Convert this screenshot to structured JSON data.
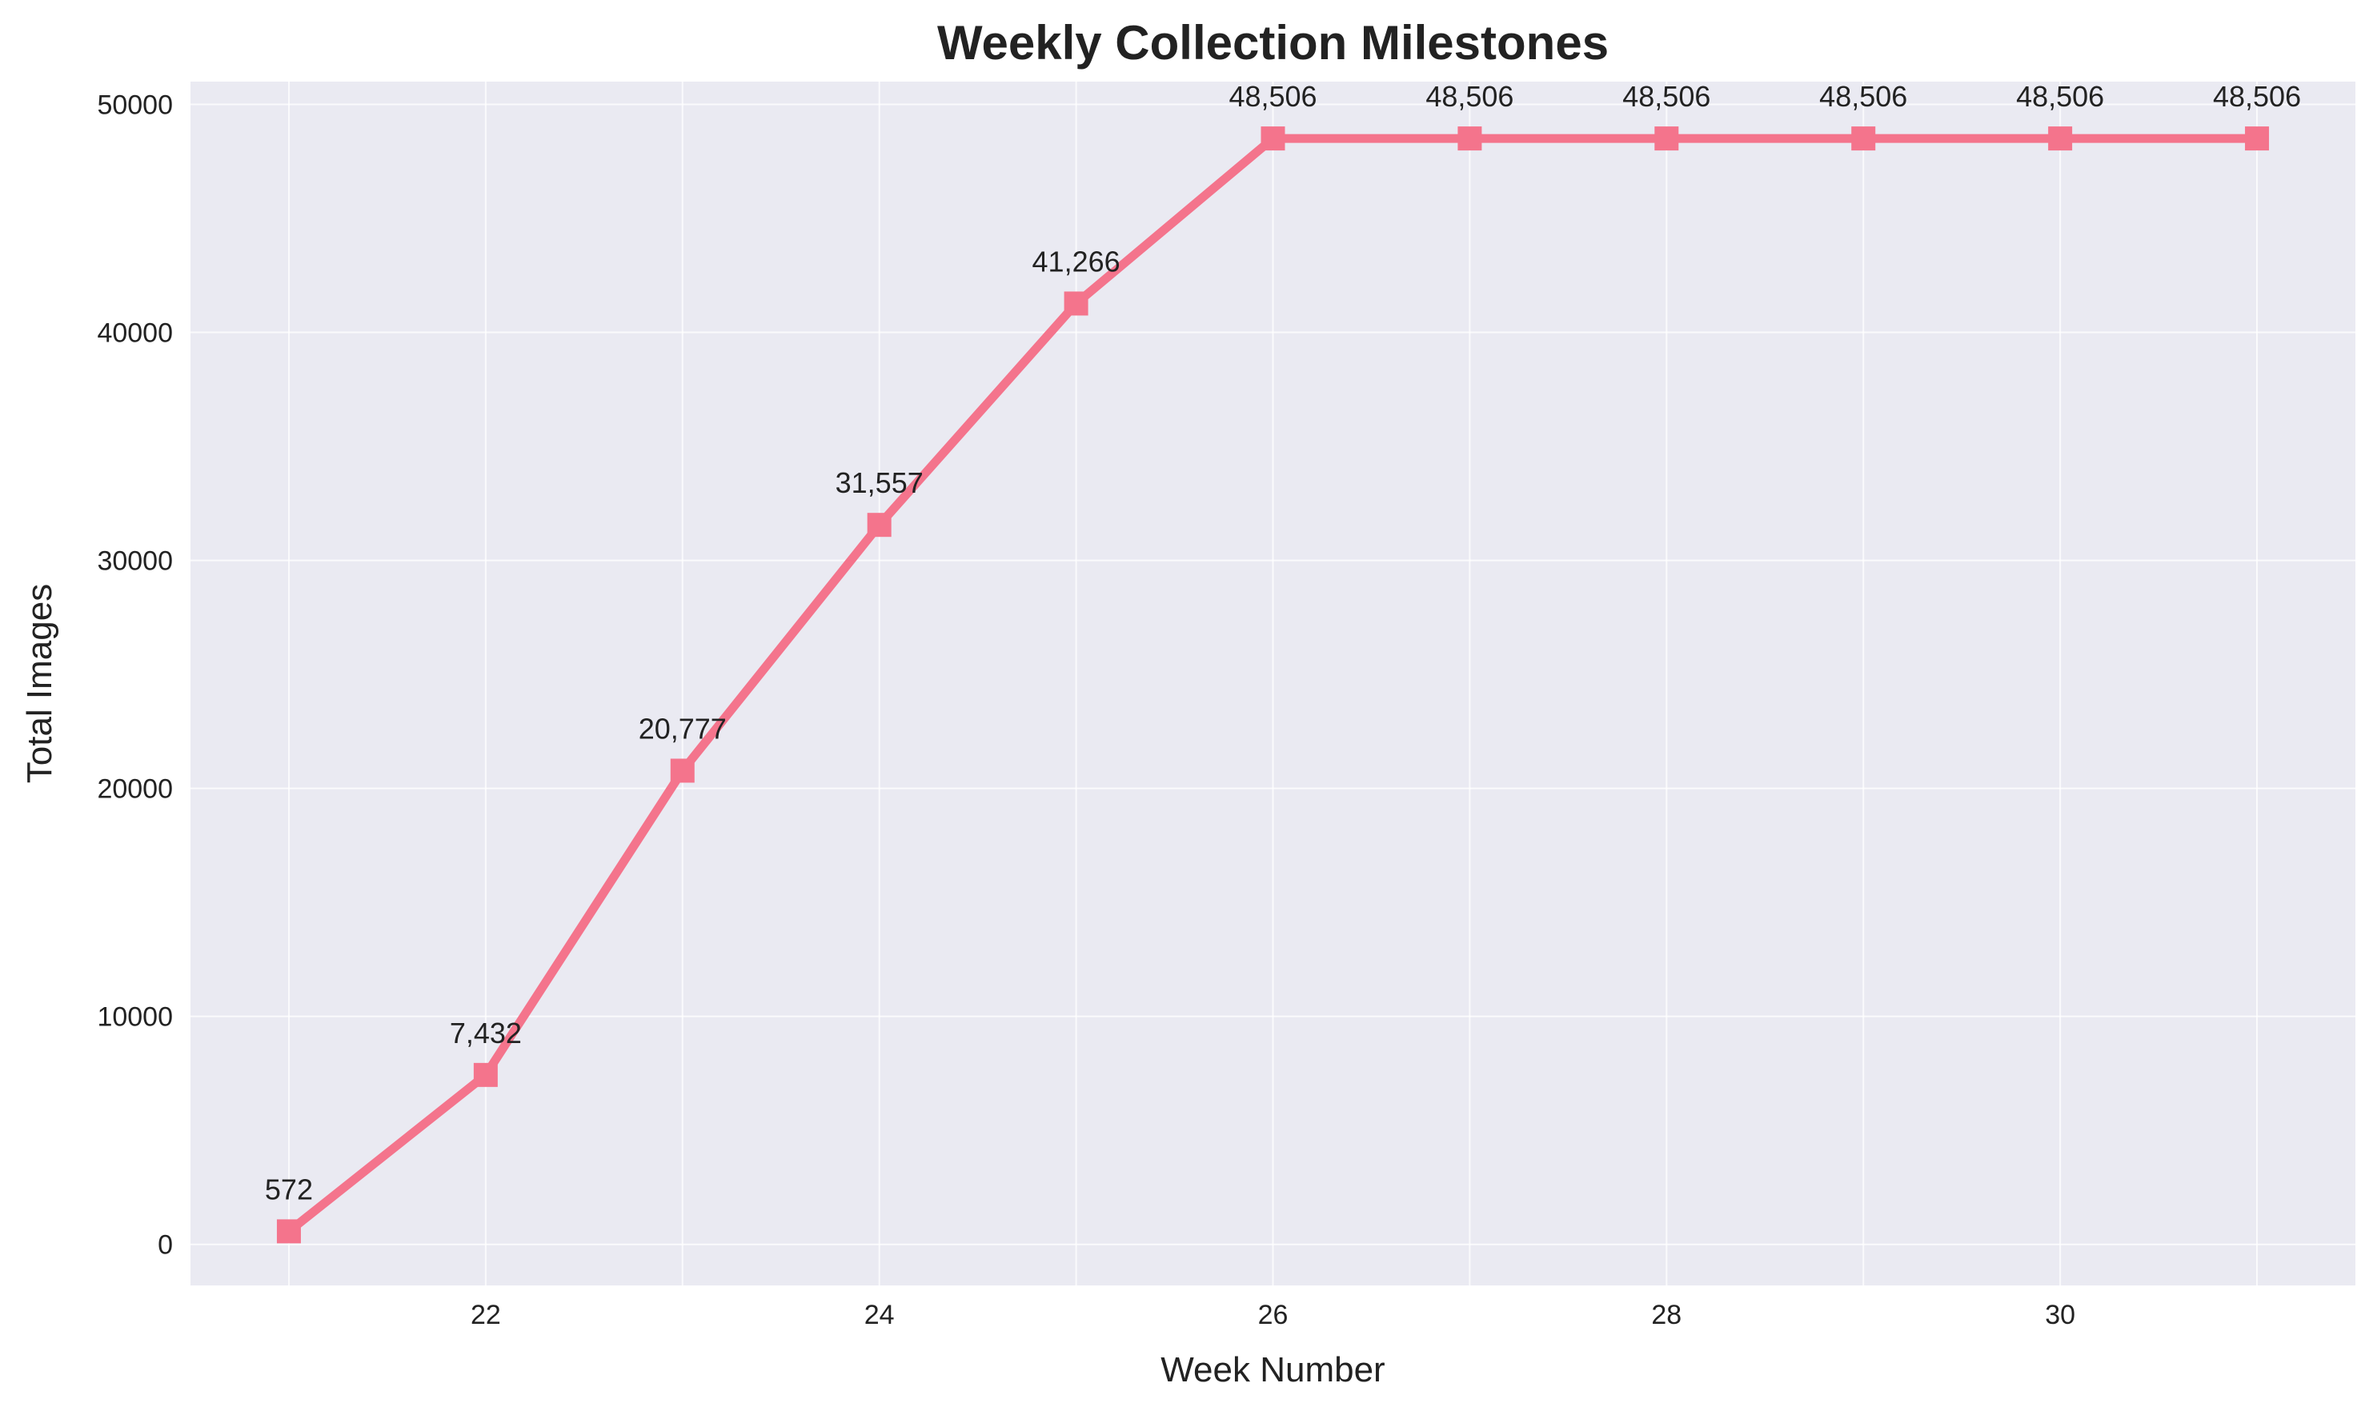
{
  "chart_data": {
    "type": "line",
    "title": "Weekly Collection Milestones",
    "xlabel": "Week Number",
    "ylabel": "Total Images",
    "x": [
      21,
      22,
      23,
      24,
      25,
      26,
      27,
      28,
      29,
      30,
      31
    ],
    "series": [
      {
        "values": [
          572,
          7432,
          20777,
          31557,
          41266,
          48506,
          48506,
          48506,
          48506,
          48506,
          48506
        ],
        "labels": [
          "572",
          "7,432",
          "20,777",
          "31,557",
          "41,266",
          "48,506",
          "48,506",
          "48,506",
          "48,506",
          "48,506",
          "48,506"
        ],
        "color": "#f4748c",
        "marker": "square"
      }
    ],
    "xlim": [
      20.5,
      31.5
    ],
    "ylim": [
      -1800,
      51000
    ],
    "xticks": [
      22,
      24,
      26,
      28,
      30
    ],
    "yticks": [
      0,
      10000,
      20000,
      30000,
      40000,
      50000
    ],
    "grid": true,
    "background": "#eaeaf2",
    "gridcolor": "#ffffff"
  }
}
